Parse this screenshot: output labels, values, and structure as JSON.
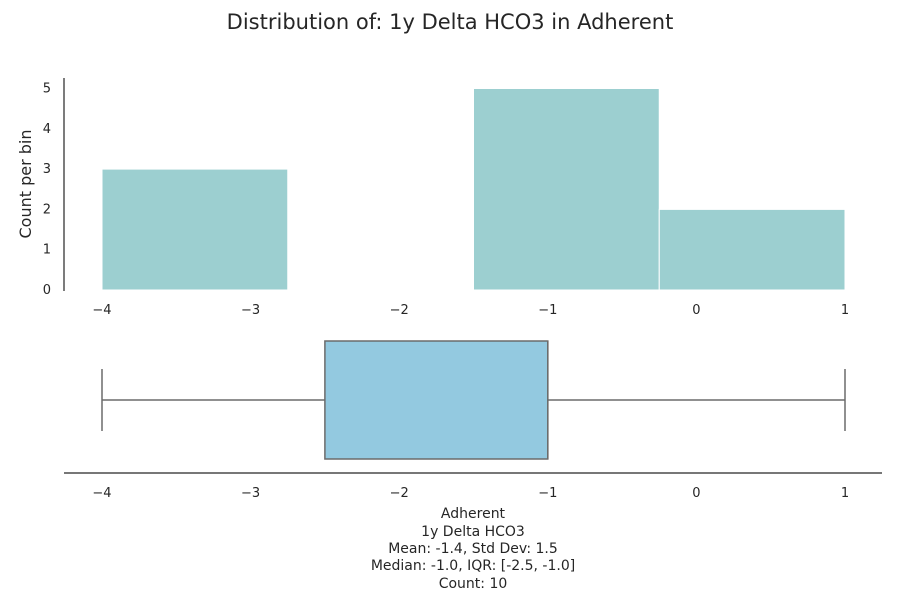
{
  "chart_data": [
    {
      "type": "bar",
      "title": "Distribution of: 1y Delta HCO3 in Adherent",
      "ylabel": "Count per bin",
      "xlabel": "",
      "bins": [
        {
          "start": -4.0,
          "end": -2.75,
          "count": 3
        },
        {
          "start": -2.75,
          "end": -1.5,
          "count": 0
        },
        {
          "start": -1.5,
          "end": -0.25,
          "count": 5
        },
        {
          "start": -0.25,
          "end": 1.0,
          "count": 2
        }
      ],
      "xlim": [
        -4.25,
        1.25
      ],
      "ylim": [
        0,
        5.3
      ],
      "xticks": [
        -4,
        -3,
        -2,
        -1,
        0,
        1
      ],
      "xtick_labels": [
        "−4",
        "−3",
        "−2",
        "−1",
        "0",
        "1"
      ],
      "yticks": [
        0,
        1,
        2,
        3,
        4,
        5
      ],
      "ytick_labels": [
        "0",
        "1",
        "2",
        "3",
        "4",
        "5"
      ],
      "color": "#9ccfd0",
      "grid": false
    },
    {
      "type": "box",
      "whisker_low": -4.0,
      "q1": -2.5,
      "median": -1.0,
      "q3": -1.0,
      "whisker_high": 1.0,
      "xticks": [
        -4,
        -3,
        -2,
        -1,
        0,
        1
      ],
      "xtick_labels": [
        "−4",
        "−3",
        "−2",
        "−1",
        "0",
        "1"
      ],
      "color": "#93c9e0",
      "line_color": "#6b6b6b"
    }
  ],
  "info": {
    "group": "Adherent",
    "variable": "1y Delta HCO3",
    "stats_line1": "Mean: -1.4, Std Dev: 1.5",
    "stats_line2": "Median: -1.0, IQR: [-2.5, -1.0]",
    "count_line": "Count: 10"
  }
}
